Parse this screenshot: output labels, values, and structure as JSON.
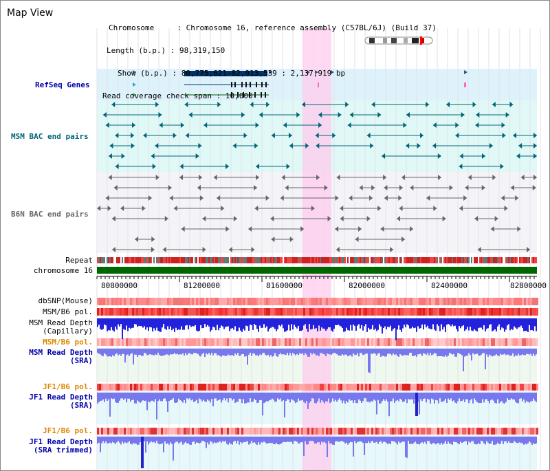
{
  "map_title": "Map View",
  "info": {
    "chromosome_key": "Chromosome",
    "chromosome_val": "Chromosome 16, reference assembly (C57BL/6J) (Build 37)",
    "length_key": "Length (b.p.)",
    "length_val": "98,319,150",
    "show_key": "Show (b.p.)",
    "show_val": "80,775,621-82,913,539 : 2,137,919 bp",
    "span_key": "Read coverage check span",
    "span_val": "10,000"
  },
  "tracks": {
    "refseq": "RefSeq Genes",
    "msm_bac": "MSM BAC end pairs",
    "b6n_bac": "B6N BAC end pairs",
    "repeat": "Repeat",
    "chromosome": "chromosome 16",
    "dbsnp": "dbSNP(Mouse)",
    "msm_b6_pol": "MSM/B6 pol.",
    "msm_read_depth_cap_1": "MSM Read Depth",
    "msm_read_depth_cap_2": "(Capillary)",
    "msm_b6_pol_sra": "MSM/B6 pol.",
    "msm_read_depth_sra_1": "MSM Read Depth",
    "msm_read_depth_sra_2": "(SRA)",
    "jf1_b6_pol": "JF1/B6 pol.",
    "jf1_read_depth_sra_1": "JF1 Read Depth",
    "jf1_read_depth_sra_2": "(SRA)",
    "jf1_b6_pol_trim": "JF1/B6 pol.",
    "jf1_read_depth_trim_1": "JF1 Read Depth",
    "jf1_read_depth_trim_2": "(SRA trimmed)"
  },
  "axis": {
    "ticks": [
      "80800000",
      "81200000",
      "81600000",
      "82000000",
      "82400000",
      "82800000"
    ]
  },
  "colors": {
    "gene_blue": "#003366",
    "msm_teal": "#006677",
    "b6n_gray": "#666666",
    "label_blue": "#0000aa",
    "label_orange": "#dd8800",
    "highlight": "#ffccee",
    "chromosome_green": "#006600",
    "depth_blue": "#2222dd",
    "depth_light": "#7777ee"
  }
}
